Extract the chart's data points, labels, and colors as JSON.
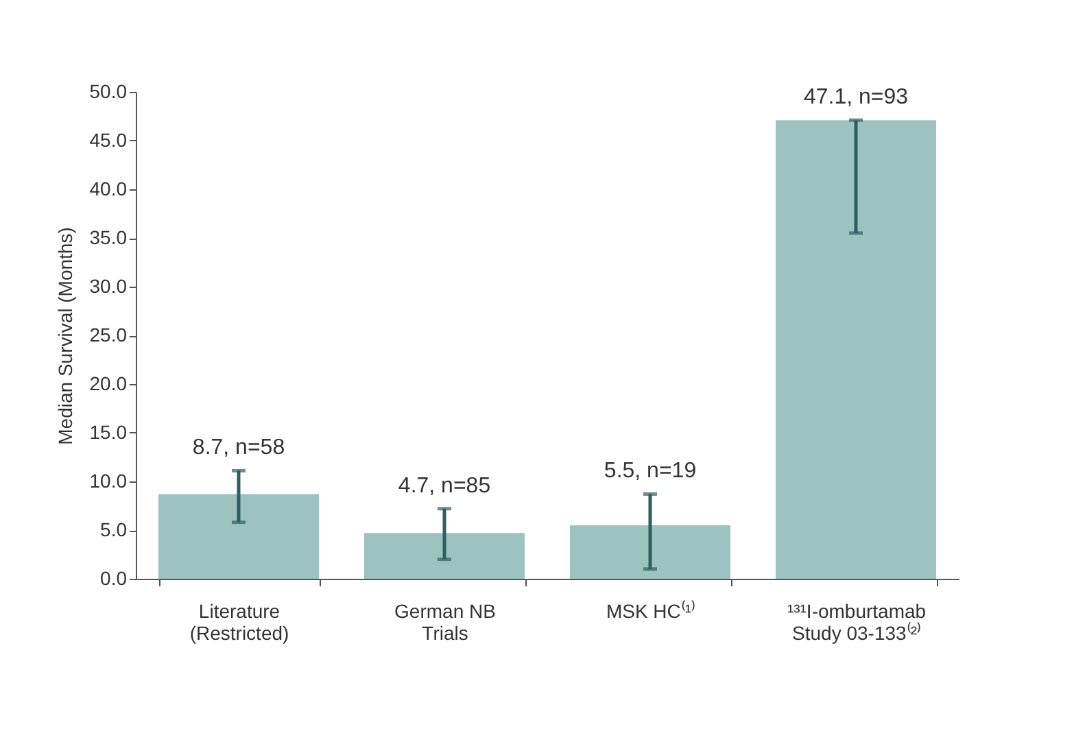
{
  "chart_data": {
    "type": "bar",
    "ylabel": "Median Survival (Months)",
    "categories": [
      "Literature\n(Restricted)",
      "German NB\nTrials",
      "MSK HC⁽¹⁾",
      "¹³¹I-omburtamab\nStudy 03-133⁽²⁾"
    ],
    "values": [
      8.7,
      4.7,
      5.5,
      47.1
    ],
    "color": "#9dc3c1",
    "errors": [
      [
        5.8,
        11.1
      ],
      [
        2.0,
        7.2
      ],
      [
        1.0,
        8.7
      ],
      [
        35.5,
        47.1
      ]
    ],
    "value_labels": [
      "8.7, n=58",
      "4.7, n=85",
      "5.5, n=19",
      "47.1, n=93"
    ],
    "ylim": [
      0,
      50
    ],
    "yticks": [
      {
        "value": 0,
        "label": "0.0"
      },
      {
        "value": 5,
        "label": "5.0"
      },
      {
        "value": 10,
        "label": "10.0"
      },
      {
        "value": 15,
        "label": "15.0"
      },
      {
        "value": 20,
        "label": "20.0"
      },
      {
        "value": 25,
        "label": "25.0"
      },
      {
        "value": 30,
        "label": "30.0"
      },
      {
        "value": 35,
        "label": "35.0"
      },
      {
        "value": 40,
        "label": "40.0"
      },
      {
        "value": 45,
        "label": "45.0"
      },
      {
        "value": 50,
        "label": "50.0"
      }
    ],
    "grid": false
  }
}
